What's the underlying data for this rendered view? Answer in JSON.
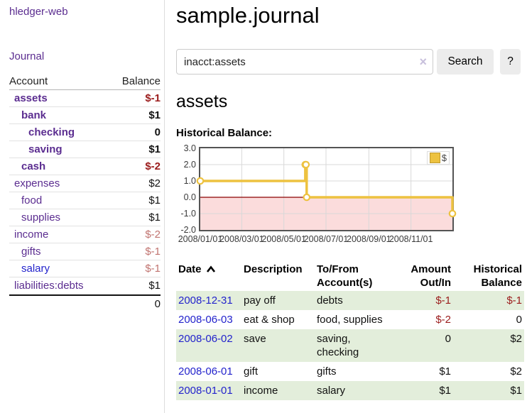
{
  "app": {
    "title": "hledger-web"
  },
  "sidebar": {
    "journal_link": "Journal",
    "accounts": {
      "header_account": "Account",
      "header_balance": "Balance",
      "rows": [
        {
          "name": "assets",
          "balance": "$-1"
        },
        {
          "name": "bank",
          "balance": "$1"
        },
        {
          "name": "checking",
          "balance": "0"
        },
        {
          "name": "saving",
          "balance": "$1"
        },
        {
          "name": "cash",
          "balance": "$-2"
        },
        {
          "name": "expenses",
          "balance": "$2"
        },
        {
          "name": "food",
          "balance": "$1"
        },
        {
          "name": "supplies",
          "balance": "$1"
        },
        {
          "name": "income",
          "balance": "$-2"
        },
        {
          "name": "gifts",
          "balance": "$-1"
        },
        {
          "name": "salary",
          "balance": "$-1"
        },
        {
          "name": "liabilities:debts",
          "balance": "$1"
        }
      ],
      "total": "0"
    }
  },
  "main": {
    "title": "sample.journal",
    "search": {
      "value": "inacct:assets",
      "clear_label": "×",
      "button_label": "Search",
      "help_label": "?"
    },
    "account_heading": "assets",
    "section_label": "Historical Balance:"
  },
  "chart_data": {
    "type": "line",
    "step": true,
    "title": "Historical Balance",
    "x_range": [
      "2008-01-01",
      "2008-12-31"
    ],
    "ylim": [
      -2,
      3
    ],
    "y_ticks": [
      3.0,
      2.0,
      1.0,
      0.0,
      -1.0,
      -2.0
    ],
    "y_tick_labels": [
      "3.0",
      "2.0",
      "1.0",
      "0.0",
      "-1.0",
      "-2.0"
    ],
    "x_ticks": [
      "2008/01/01",
      "2008/03/01",
      "2008/05/01",
      "2008/07/01",
      "2008/09/01",
      "2008/11/01"
    ],
    "series": [
      {
        "name": "$",
        "color": "#edc240",
        "points": [
          {
            "x": "2008-01-01",
            "y": 1
          },
          {
            "x": "2008-06-01",
            "y": 2
          },
          {
            "x": "2008-06-02",
            "y": 2
          },
          {
            "x": "2008-06-03",
            "y": 0
          },
          {
            "x": "2008-12-31",
            "y": -1
          }
        ]
      }
    ],
    "legend": {
      "label": "$",
      "position": "top-right",
      "swatch_color": "#edc240"
    },
    "grid": true,
    "gridline_color": "#d8d8d8",
    "zero_line_color": "#8b0000",
    "negative_region_fill": "#fbdcdc",
    "border_color": "#545454"
  },
  "transactions": {
    "headers": {
      "date": "Date",
      "description": "Description",
      "account": "To/From Account(s)",
      "amount": "Amount Out/In",
      "balance": "Historical Balance"
    },
    "rows": [
      {
        "date": "2008-12-31",
        "description": "pay off",
        "account": "debts",
        "amount": "$-1",
        "balance": "$-1"
      },
      {
        "date": "2008-06-03",
        "description": "eat & shop",
        "account": "food, supplies",
        "amount": "$-2",
        "balance": "0"
      },
      {
        "date": "2008-06-02",
        "description": "save",
        "account": "saving, checking",
        "amount": "0",
        "balance": "$2"
      },
      {
        "date": "2008-06-01",
        "description": "gift",
        "account": "gifts",
        "amount": "$1",
        "balance": "$2"
      },
      {
        "date": "2008-01-01",
        "description": "income",
        "account": "salary",
        "amount": "$1",
        "balance": "$1"
      }
    ]
  },
  "colors": {
    "link_purple": "#5b2d90",
    "link_blue": "#2323cc",
    "negative_dark": "#9b1c1c",
    "negative_light": "#c17470",
    "row_green": "#e3eedb",
    "accent_gold": "#edc240"
  }
}
